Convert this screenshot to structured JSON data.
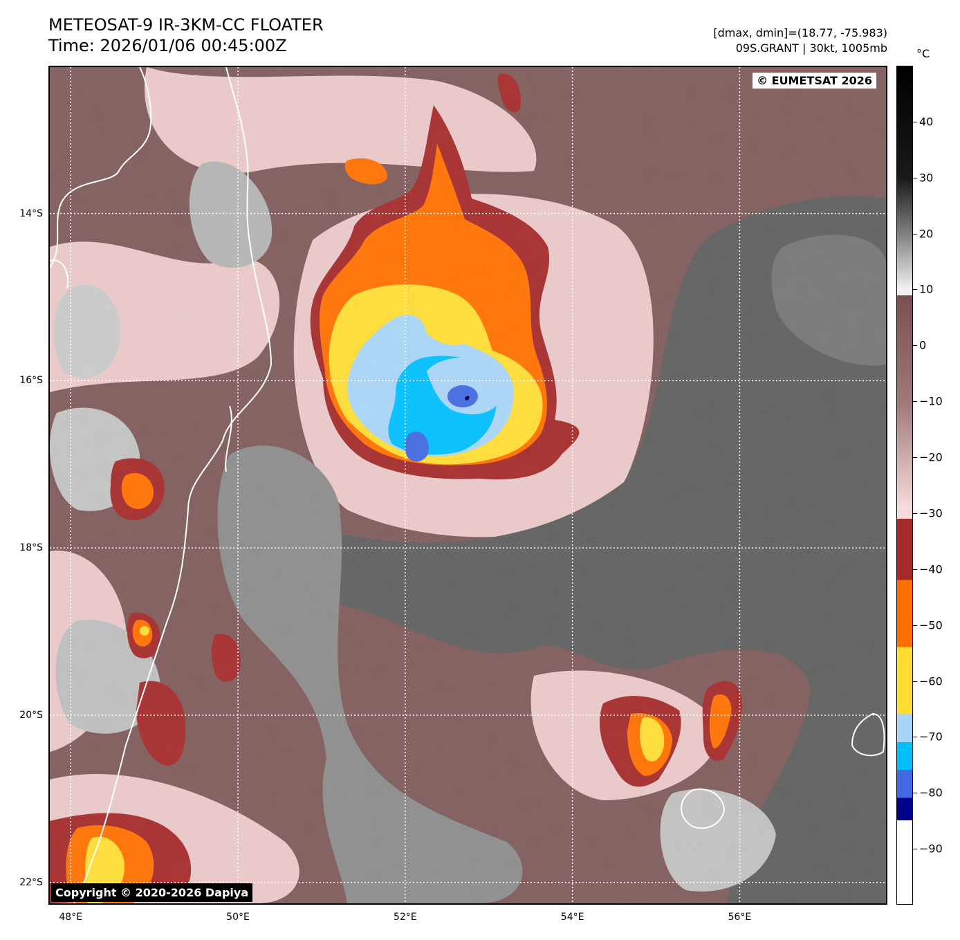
{
  "header": {
    "title_line1": "METEOSAT-9 IR-3KM-CC FLOATER",
    "title_line2": "Time: 2026/01/06 00:45:00Z",
    "meta_line1": "[dmax, dmin]=(18.77, -75.983)",
    "meta_line2": "09S.GRANT | 30kt, 1005mb"
  },
  "map": {
    "lon_range": [
      47.75,
      57.75
    ],
    "lat_range": [
      -22.25,
      -12.25
    ],
    "lat_labels": [
      {
        "lat": -14,
        "label": "14°S"
      },
      {
        "lat": -16,
        "label": "16°S"
      },
      {
        "lat": -18,
        "label": "18°S"
      },
      {
        "lat": -20,
        "label": "20°S"
      },
      {
        "lat": -22,
        "label": "22°S"
      }
    ],
    "lon_labels": [
      {
        "lon": 48,
        "label": "48°E"
      },
      {
        "lon": 50,
        "label": "50°E"
      },
      {
        "lon": 52,
        "label": "52°E"
      },
      {
        "lon": 54,
        "label": "54°E"
      },
      {
        "lon": 56,
        "label": "56°E"
      }
    ],
    "storm_center": {
      "lon": 52.75,
      "lat": -16.2
    },
    "credit_eumetsat": "© EUMETSAT 2026",
    "credit_dapiya": "Copyright © 2020-2026 Dapiya"
  },
  "colorbar": {
    "unit": "°C",
    "range": [
      -100,
      50
    ],
    "ticks": [
      {
        "v": 40,
        "label": "40"
      },
      {
        "v": 30,
        "label": "30"
      },
      {
        "v": 20,
        "label": "20"
      },
      {
        "v": 10,
        "label": "10"
      },
      {
        "v": 0,
        "label": "0"
      },
      {
        "v": -10,
        "label": "−10"
      },
      {
        "v": -20,
        "label": "−20"
      },
      {
        "v": -30,
        "label": "−30"
      },
      {
        "v": -40,
        "label": "−40"
      },
      {
        "v": -50,
        "label": "−50"
      },
      {
        "v": -60,
        "label": "−60"
      },
      {
        "v": -70,
        "label": "−70"
      },
      {
        "v": -80,
        "label": "−80"
      },
      {
        "v": -90,
        "label": "−90"
      }
    ],
    "colors": {
      "warm_top": "#000000",
      "gray_mid": "#808080",
      "light": "#f2f2f2",
      "brown": "#7a4f4f",
      "pink": "#f5dcdc",
      "dark_red": "#a52a2a",
      "orange": "#ff7000",
      "yellow": "#ffdd33",
      "light_blue": "#a8d4f7",
      "cyan": "#00bfff",
      "blue": "#4169e1",
      "navy": "#00008b",
      "white": "#ffffff"
    }
  }
}
